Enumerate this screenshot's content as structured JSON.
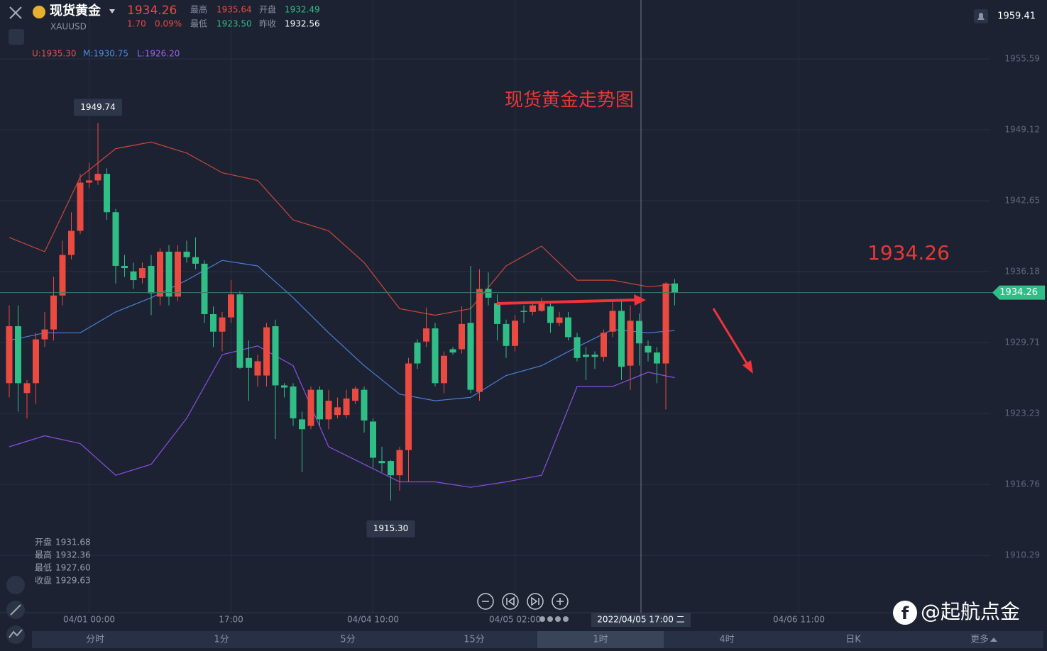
{
  "header": {
    "name": "现货黄金",
    "symbol": "XAUUSD",
    "price": 1934.26,
    "change": "1.70",
    "change_pct": "0.09%",
    "stats": [
      {
        "label": "最高",
        "value": "1935.64"
      },
      {
        "label": "开盘",
        "value": "1932.49"
      },
      {
        "label": "最低",
        "value": "1923.50"
      },
      {
        "label": "昨收",
        "value": "1932.56"
      }
    ],
    "alert_price": "1959.41"
  },
  "indicator_legend": [
    "U:1935.30",
    "M:1930.75",
    "L:1926.20"
  ],
  "info_panel": [
    {
      "label": "开盘",
      "value": "1931.68"
    },
    {
      "label": "最高",
      "value": "1932.36"
    },
    {
      "label": "最低",
      "value": "1927.60"
    },
    {
      "label": "收盘",
      "value": "1929.63"
    }
  ],
  "crosshair_label": "2022/04/05 17:00 二",
  "tabs": [
    "分时",
    "1分",
    "5分",
    "15分",
    "1时",
    "4时",
    "日K",
    "更多"
  ],
  "watermark": "@起航点金",
  "chart_data": {
    "type": "candlestick",
    "title": "现货黄金走势图",
    "up_color": "#ea4a3f",
    "down_color": "#2fbf86",
    "open": [
      1926.0,
      1931.2,
      1925.1,
      1926.0,
      1930.0,
      1930.9,
      1934.0,
      1937.7,
      1939.9,
      1944.3,
      1944.5,
      1945.1,
      1941.6,
      1936.7,
      1936.2,
      1935.6,
      1936.7,
      1933.9,
      1938.0,
      1933.9,
      1938.0,
      1937.5,
      1936.9,
      1932.3,
      1930.7,
      1932.0,
      1934.1,
      1928.3,
      1926.7,
      1926.7,
      1931.2,
      1925.8,
      1925.7,
      1922.7,
      1922.1,
      1925.4,
      1922.7,
      1923.1,
      1923.1,
      1924.4,
      1925.4,
      1922.5,
      1918.9,
      1918.9,
      1917.6,
      1919.9,
      1929.7,
      1929.8,
      1931.0,
      1926.0,
      1929.1,
      1929.1,
      1931.5,
      1925.2,
      1934.6,
      1933.3,
      1931.4,
      1929.4,
      1932.6,
      1932.5,
      1932.6,
      1933.0,
      1931.5,
      1932.0,
      1930.2,
      1928.6,
      1928.6,
      1928.4,
      1930.7,
      1932.6,
      1927.6,
      1931.68,
      1929.4,
      1928.8,
      1927.8,
      1935.1
    ],
    "high": [
      1933.1,
      1933.1,
      1926.3,
      1930.6,
      1932.5,
      1935.7,
      1939.0,
      1941.6,
      1945.1,
      1946.1,
      1949.74,
      1945.6,
      1941.9,
      1937.7,
      1937.0,
      1937.0,
      1937.7,
      1938.3,
      1938.6,
      1938.6,
      1939.0,
      1939.3,
      1937.2,
      1933.0,
      1932.5,
      1935.4,
      1934.4,
      1929.9,
      1928.6,
      1931.5,
      1931.8,
      1926.0,
      1926.0,
      1923.4,
      1925.7,
      1925.7,
      1925.4,
      1924.7,
      1925.4,
      1925.7,
      1925.7,
      1922.8,
      1920.2,
      1919.0,
      1920.2,
      1928.3,
      1930.0,
      1932.9,
      1931.5,
      1928.9,
      1929.3,
      1933.0,
      1936.7,
      1936.4,
      1936.1,
      1934.1,
      1931.8,
      1932.2,
      1933.1,
      1933.5,
      1933.8,
      1933.3,
      1932.5,
      1932.5,
      1930.6,
      1929.3,
      1928.9,
      1930.9,
      1933.5,
      1933.5,
      1933.1,
      1932.36,
      1929.9,
      1929.3,
      1935.2,
      1935.5
    ],
    "low": [
      1924.7,
      1923.4,
      1922.8,
      1924.1,
      1929.3,
      1929.9,
      1933.1,
      1937.3,
      1939.6,
      1943.8,
      1944.1,
      1940.9,
      1935.1,
      1935.7,
      1934.6,
      1935.1,
      1932.2,
      1933.1,
      1933.1,
      1933.5,
      1937.0,
      1936.4,
      1931.5,
      1929.3,
      1928.9,
      1931.5,
      1927.3,
      1924.4,
      1925.7,
      1925.7,
      1920.9,
      1924.7,
      1922.1,
      1917.9,
      1921.8,
      1922.1,
      1921.8,
      1922.8,
      1922.8,
      1924.1,
      1921.5,
      1918.3,
      1917.9,
      1915.3,
      1916.2,
      1917.0,
      1927.3,
      1929.3,
      1925.7,
      1925.1,
      1928.6,
      1928.7,
      1925.1,
      1924.4,
      1933.1,
      1929.9,
      1928.3,
      1928.9,
      1931.5,
      1932.2,
      1932.5,
      1930.6,
      1931.2,
      1929.9,
      1928.0,
      1926.3,
      1927.3,
      1928.0,
      1930.2,
      1926.3,
      1925.4,
      1927.6,
      1928.0,
      1926.0,
      1923.6,
      1933.1
    ],
    "close": [
      1931.2,
      1926.0,
      1926.0,
      1930.0,
      1930.9,
      1934.0,
      1937.7,
      1939.9,
      1944.3,
      1944.5,
      1945.1,
      1941.6,
      1936.7,
      1936.5,
      1935.4,
      1936.5,
      1934.2,
      1938.0,
      1933.9,
      1938.0,
      1937.5,
      1936.9,
      1932.3,
      1930.7,
      1932.0,
      1934.1,
      1927.4,
      1927.4,
      1928.0,
      1931.1,
      1925.8,
      1925.6,
      1922.8,
      1921.8,
      1925.4,
      1922.7,
      1924.4,
      1923.8,
      1924.6,
      1925.5,
      1922.6,
      1919.2,
      1918.7,
      1917.6,
      1919.9,
      1927.8,
      1927.8,
      1931.0,
      1926.0,
      1928.5,
      1928.8,
      1931.4,
      1925.4,
      1934.6,
      1933.8,
      1931.4,
      1929.4,
      1931.7,
      1932.5,
      1933.1,
      1933.3,
      1931.5,
      1932.0,
      1930.2,
      1928.3,
      1928.4,
      1928.4,
      1930.6,
      1932.6,
      1927.5,
      1931.7,
      1929.63,
      1928.8,
      1927.8,
      1935.1,
      1934.26
    ],
    "extreme_labels": [
      "1949.74",
      "1915.30"
    ],
    "bands": [
      {
        "color": "#c9473c",
        "x": [
          0,
          4,
          8,
          12,
          16,
          20,
          24,
          28,
          32,
          36,
          40,
          44,
          48,
          52,
          56,
          60,
          64,
          68,
          72,
          75
        ],
        "values": [
          1939.3,
          1938.0,
          1944.8,
          1947.4,
          1948.0,
          1947.0,
          1945.2,
          1944.5,
          1940.9,
          1939.9,
          1937.0,
          1932.8,
          1932.2,
          1932.8,
          1936.7,
          1938.5,
          1935.4,
          1935.4,
          1934.8,
          1935.0
        ]
      },
      {
        "color": "#4a7fd6",
        "x": [
          0,
          4,
          8,
          12,
          16,
          20,
          24,
          28,
          32,
          36,
          40,
          44,
          48,
          52,
          56,
          60,
          64,
          68,
          72,
          75
        ],
        "values": [
          1929.9,
          1930.6,
          1930.6,
          1932.5,
          1933.8,
          1935.4,
          1937.2,
          1936.7,
          1933.8,
          1930.6,
          1927.6,
          1925.0,
          1924.4,
          1924.7,
          1926.7,
          1927.6,
          1929.3,
          1930.9,
          1930.6,
          1930.8
        ]
      },
      {
        "color": "#8a4fe0",
        "x": [
          0,
          4,
          8,
          12,
          16,
          20,
          24,
          28,
          32,
          36,
          40,
          44,
          48,
          52,
          56,
          60,
          64,
          68,
          72,
          75
        ],
        "values": [
          1920.2,
          1921.2,
          1920.5,
          1917.6,
          1918.6,
          1922.8,
          1928.6,
          1929.4,
          1927.6,
          1920.2,
          1918.6,
          1917.0,
          1917.0,
          1916.5,
          1917.0,
          1917.6,
          1925.7,
          1925.7,
          1927.0,
          1926.5
        ]
      }
    ],
    "ylim": [
      1905.19,
      1960.96
    ],
    "yticks": [
      1955.59,
      1949.12,
      1942.65,
      1936.18,
      1929.71,
      1923.23,
      1916.76,
      1910.29
    ],
    "xlim": [
      -1.04,
      110.96
    ],
    "xticks": [
      {
        "value": 9,
        "label": "04/01 00:00"
      },
      {
        "value": 25,
        "label": "17:00"
      },
      {
        "value": 41,
        "label": "04/04 10:00"
      },
      {
        "value": 57,
        "label": "04/05 02:00"
      },
      {
        "value": 89,
        "label": "04/06 11:00"
      }
    ],
    "grid": true
  }
}
